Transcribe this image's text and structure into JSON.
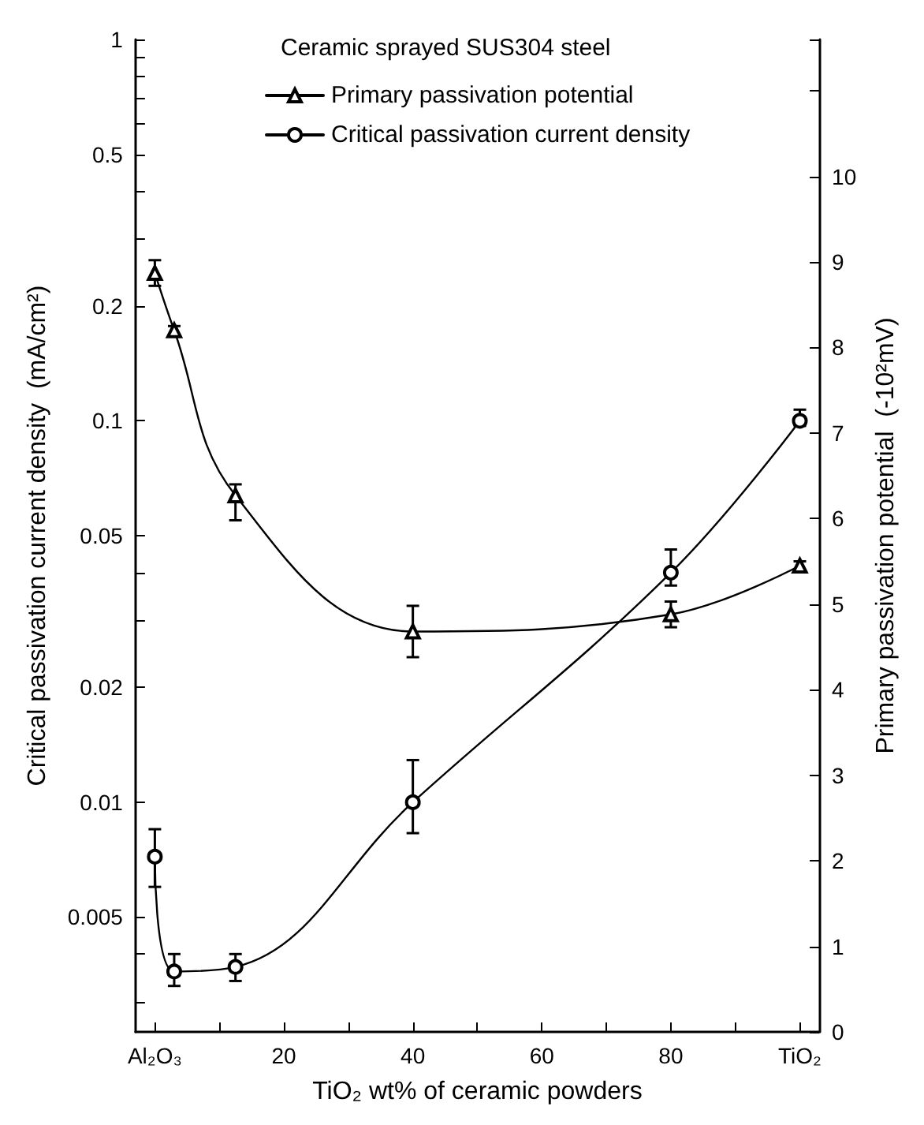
{
  "chart_data": {
    "type": "line",
    "legend_title": "Ceramic sprayed SUS304 steel",
    "xlabel": "TiO₂ wt% of ceramic powders",
    "ylabel": "Critical passivation current density  (mA/cm²)",
    "y2label": "Primary passivation potential  (-10²mV)",
    "log": "y",
    "grid": false,
    "legend": "top",
    "line_style": "solid",
    "xlim": [
      -3,
      103
    ],
    "xticks": [
      {
        "value": 0,
        "label": "Al₂O₃"
      },
      {
        "value": 10,
        "label": null
      },
      20,
      {
        "value": 30,
        "label": null
      },
      40,
      {
        "value": 50,
        "label": null
      },
      60,
      {
        "value": 70,
        "label": null
      },
      80,
      {
        "value": 90,
        "label": null
      },
      {
        "value": 100,
        "label": "TiO₂"
      }
    ],
    "ylim": [
      0.0025,
      1
    ],
    "yticks": [
      {
        "value": 0.003,
        "label": null
      },
      {
        "value": 0.004,
        "label": null
      },
      0.005,
      0.01,
      0.02,
      {
        "value": 0.03,
        "label": null
      },
      {
        "value": 0.04,
        "label": null
      },
      0.05,
      0.1,
      0.2,
      {
        "value": 0.3,
        "label": null
      },
      {
        "value": 0.4,
        "label": null
      },
      0.5,
      {
        "value": 0.6,
        "label": null
      },
      {
        "value": 0.7,
        "label": null
      },
      {
        "value": 0.8,
        "label": null
      },
      {
        "value": 0.9,
        "label": null
      },
      1
    ],
    "y2lim": [
      0,
      11.6
    ],
    "y2ticks": [
      0,
      1,
      2,
      3,
      4,
      5,
      6,
      7,
      8,
      9,
      10,
      {
        "value": 11,
        "label": null
      }
    ],
    "series": [
      {
        "name": "Primary passivation potential",
        "color": "#000000",
        "marker": "triangle",
        "axis": "y2",
        "x": [
          0,
          3,
          12.5,
          40,
          80,
          100
        ],
        "values": [
          8.87,
          8.2,
          6.27,
          4.68,
          4.88,
          5.45
        ],
        "errors": [
          0.15,
          0.05,
          [
            5.98,
            6.4
          ],
          0.3,
          0.15,
          0.05
        ]
      },
      {
        "name": "Critical passivation current density",
        "color": "#000000",
        "marker": "circle",
        "x": [
          0,
          3,
          12.5,
          40,
          80,
          100
        ],
        "values": [
          0.0072,
          0.0036,
          0.0037,
          0.01,
          0.04,
          0.1
        ],
        "errors": [
          [
            0.006,
            0.0085
          ],
          [
            0.0033,
            0.004
          ],
          [
            0.0034,
            0.004
          ],
          [
            0.0083,
            0.0129
          ],
          [
            0.037,
            0.046
          ],
          [
            0.097,
            0.107
          ]
        ]
      }
    ]
  }
}
